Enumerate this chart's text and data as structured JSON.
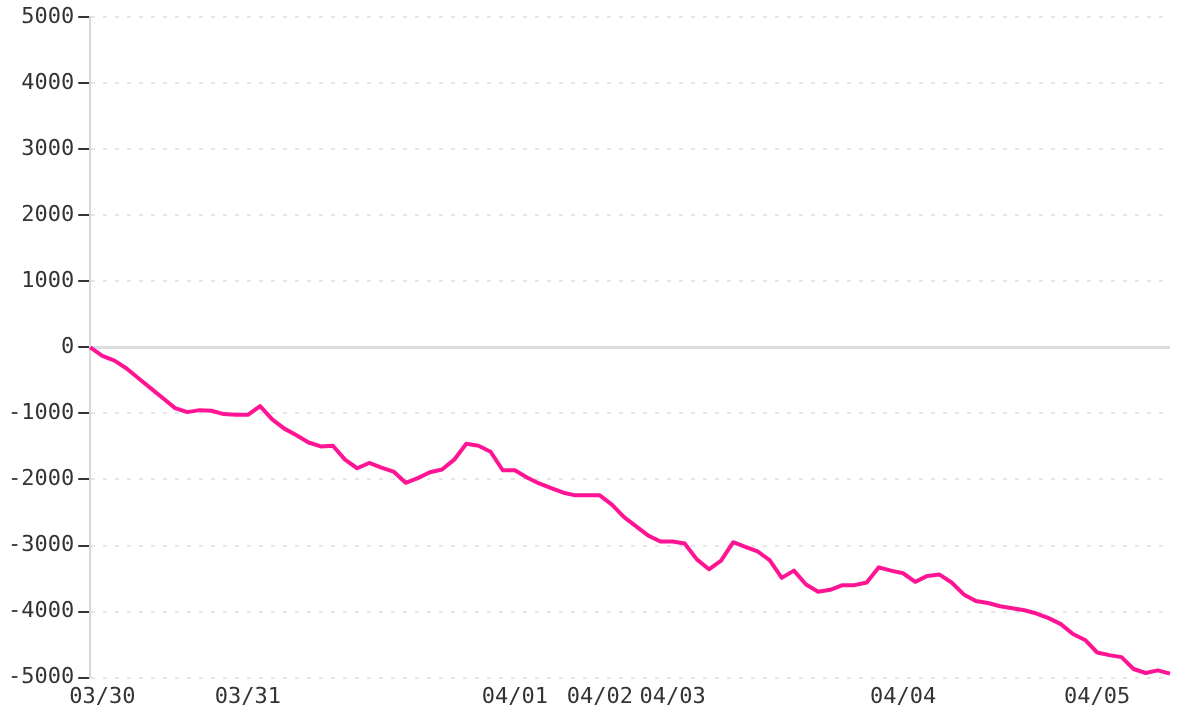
{
  "chart_data": {
    "type": "line",
    "categories": [
      null,
      "03/30",
      null,
      null,
      null,
      null,
      null,
      null,
      null,
      null,
      null,
      null,
      null,
      "03/31",
      null,
      null,
      null,
      null,
      null,
      null,
      null,
      null,
      null,
      null,
      null,
      null,
      null,
      null,
      null,
      null,
      null,
      null,
      null,
      null,
      null,
      "04/01",
      null,
      null,
      null,
      null,
      null,
      null,
      "04/02",
      null,
      null,
      null,
      null,
      null,
      "04/03",
      null,
      null,
      null,
      null,
      null,
      null,
      null,
      null,
      null,
      null,
      null,
      null,
      null,
      null,
      null,
      null,
      null,
      null,
      "04/04",
      null,
      null,
      null,
      null,
      null,
      null,
      null,
      null,
      null,
      null,
      null,
      null,
      null,
      null,
      null,
      "04/05",
      null,
      null,
      null,
      null,
      null,
      null
    ],
    "series": [
      {
        "color": "#ff1493",
        "values": [
          0,
          -130,
          -200,
          -320,
          -470,
          -620,
          -770,
          -920,
          -980,
          -950,
          -960,
          -1010,
          -1020,
          -1020,
          -890,
          -1090,
          -1230,
          -1330,
          -1440,
          -1500,
          -1490,
          -1700,
          -1830,
          -1750,
          -1820,
          -1880,
          -2050,
          -1980,
          -1890,
          -1850,
          -1700,
          -1460,
          -1490,
          -1580,
          -1860,
          -1860,
          -1970,
          -2060,
          -2130,
          -2200,
          -2240,
          -2240,
          -2240,
          -2380,
          -2570,
          -2710,
          -2850,
          -2940,
          -2940,
          -2970,
          -3210,
          -3360,
          -3230,
          -2950,
          -3020,
          -3090,
          -3220,
          -3490,
          -3380,
          -3590,
          -3700,
          -3670,
          -3600,
          -3600,
          -3560,
          -3330,
          -3380,
          -3420,
          -3550,
          -3460,
          -3440,
          -3560,
          -3740,
          -3840,
          -3870,
          -3920,
          -3950,
          -3980,
          -4030,
          -4100,
          -4190,
          -4340,
          -4430,
          -4620,
          -4660,
          -4690,
          -4870,
          -4930,
          -4890,
          -4940
        ]
      }
    ],
    "ylim": [
      -5000,
      5000
    ],
    "yticks": [
      -5000,
      -4000,
      -3000,
      -2000,
      -1000,
      0,
      1000,
      2000,
      3000,
      4000,
      5000
    ],
    "ref_lines": [
      {
        "axis": "y",
        "value": 0,
        "color": "#dddddd",
        "line_style": "solid"
      }
    ],
    "grid": "y",
    "legend": false,
    "marker": "none",
    "line_style": "solid"
  }
}
